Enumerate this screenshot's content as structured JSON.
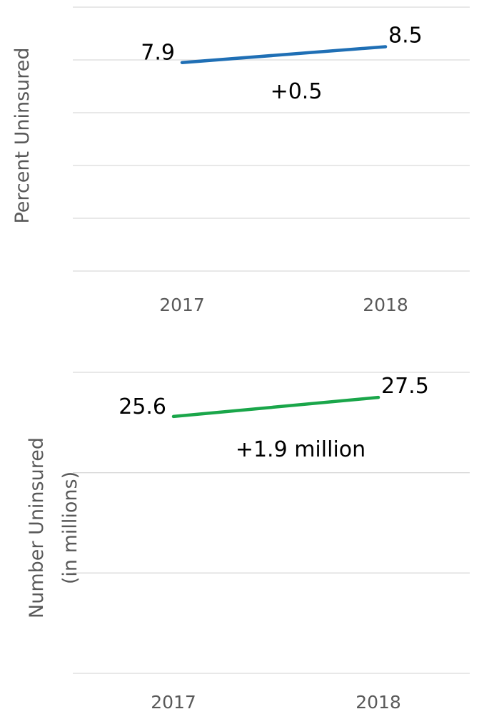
{
  "chart_data": [
    {
      "type": "line",
      "ylabel": "Percent Uninsured",
      "categories": [
        "2017",
        "2018"
      ],
      "series": [
        {
          "values": [
            7.9,
            8.5
          ],
          "color": "#1f6fb5"
        }
      ],
      "data_labels": [
        "7.9",
        "8.5"
      ],
      "annotation": "+0.5",
      "ylim": [
        0,
        10
      ],
      "grid": true
    },
    {
      "type": "line",
      "ylabel": "Number Uninsured",
      "ylabel_line2": "(in millions)",
      "categories": [
        "2017",
        "2018"
      ],
      "series": [
        {
          "values": [
            25.6,
            27.5
          ],
          "color": "#1aa64a"
        }
      ],
      "data_labels": [
        "25.6",
        "27.5"
      ],
      "annotation": "+1.9 million",
      "ylim": [
        0,
        30
      ],
      "grid": true
    }
  ]
}
